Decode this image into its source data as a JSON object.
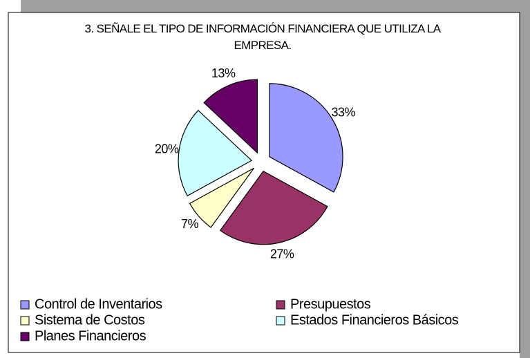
{
  "chart_data": {
    "type": "pie",
    "title": "3. SEÑALE EL TIPO DE INFORMACIÓN FINANCIERA QUE UTILIZA LA EMPRESA.",
    "categories": [
      "Control de Inventarios",
      "Presupuestos",
      "Sistema de Costos",
      "Estados Financieros Básicos",
      "Planes Financieros"
    ],
    "values": [
      33,
      27,
      7,
      20,
      13
    ],
    "value_labels": [
      "33%",
      "27%",
      "7%",
      "20%",
      "13%"
    ],
    "colors": [
      "#9999ff",
      "#993366",
      "#ffffcc",
      "#ccffff",
      "#660066"
    ]
  }
}
